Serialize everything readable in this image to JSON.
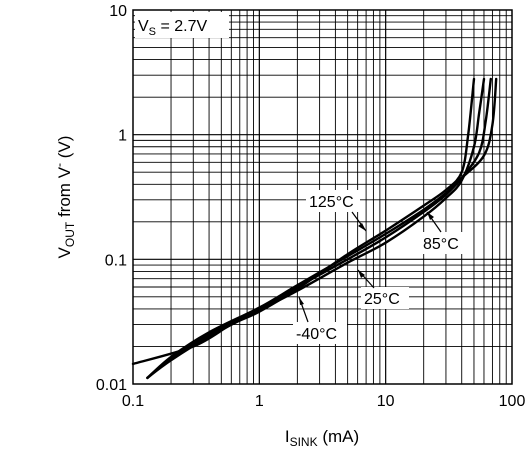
{
  "chart_data": {
    "type": "line",
    "x_scale": "log",
    "y_scale": "log",
    "xlim": [
      0.1,
      100
    ],
    "ylim": [
      0.01,
      10
    ],
    "grid": true,
    "xlabel": {
      "main": "I",
      "sub": "SINK",
      "unit": " (mA)"
    },
    "ylabel": {
      "main": "V",
      "sub": "OUT",
      "mid": " from V",
      "sup": "-",
      "unit": " (V)"
    },
    "x_ticks": [
      {
        "value": 0.1,
        "label": "0.1"
      },
      {
        "value": 1,
        "label": "1"
      },
      {
        "value": 10,
        "label": "10"
      },
      {
        "value": 100,
        "label": "100"
      }
    ],
    "y_ticks": [
      {
        "value": 0.01,
        "label": "0.01"
      },
      {
        "value": 0.1,
        "label": "0.1"
      },
      {
        "value": 1,
        "label": "1"
      },
      {
        "value": 10,
        "label": "10"
      }
    ],
    "condition": {
      "main": "V",
      "sub": "S",
      "rest": " = 2.7V"
    },
    "series": [
      {
        "name": "-40°C",
        "points": [
          [
            0.13,
            0.0112
          ],
          [
            0.2,
            0.0155
          ],
          [
            0.4,
            0.024
          ],
          [
            1,
            0.039
          ],
          [
            2,
            0.056
          ],
          [
            5,
            0.094
          ],
          [
            10,
            0.136
          ],
          [
            20,
            0.22
          ],
          [
            30,
            0.31
          ],
          [
            40,
            0.43
          ],
          [
            50,
            0.8
          ],
          [
            55,
            1.5
          ],
          [
            60,
            2.8
          ]
        ]
      },
      {
        "name": "25°C",
        "points": [
          [
            0.13,
            0.0112
          ],
          [
            0.2,
            0.016
          ],
          [
            0.4,
            0.025
          ],
          [
            1,
            0.04
          ],
          [
            2,
            0.06
          ],
          [
            5,
            0.1
          ],
          [
            10,
            0.15
          ],
          [
            20,
            0.24
          ],
          [
            30,
            0.33
          ],
          [
            40,
            0.45
          ],
          [
            55,
            0.72
          ],
          [
            62,
            1.3
          ],
          [
            68,
            2.8
          ]
        ]
      },
      {
        "name": "85°C",
        "points": [
          [
            0.13,
            0.0112
          ],
          [
            0.2,
            0.0165
          ],
          [
            0.4,
            0.026
          ],
          [
            1,
            0.041
          ],
          [
            2,
            0.062
          ],
          [
            5,
            0.106
          ],
          [
            10,
            0.16
          ],
          [
            20,
            0.25
          ],
          [
            30,
            0.34
          ],
          [
            40,
            0.45
          ],
          [
            60,
            0.68
          ],
          [
            70,
            1.2
          ],
          [
            75,
            2.8
          ]
        ]
      },
      {
        "name": "125°C",
        "points": [
          [
            0.1,
            0.0145
          ],
          [
            0.3,
            0.02
          ],
          [
            0.6,
            0.03
          ],
          [
            1,
            0.038
          ],
          [
            2,
            0.058
          ],
          [
            5,
            0.11
          ],
          [
            10,
            0.17
          ],
          [
            20,
            0.27
          ],
          [
            30,
            0.36
          ],
          [
            40,
            0.5
          ],
          [
            45,
            1.0
          ],
          [
            50,
            2.8
          ]
        ]
      }
    ],
    "annotations": [
      {
        "text": "125°C",
        "series": "125°C"
      },
      {
        "text": "85°C",
        "series": "85°C"
      },
      {
        "text": "25°C",
        "series": "25°C"
      },
      {
        "text": "-40°C",
        "series": "-40°C"
      }
    ]
  }
}
